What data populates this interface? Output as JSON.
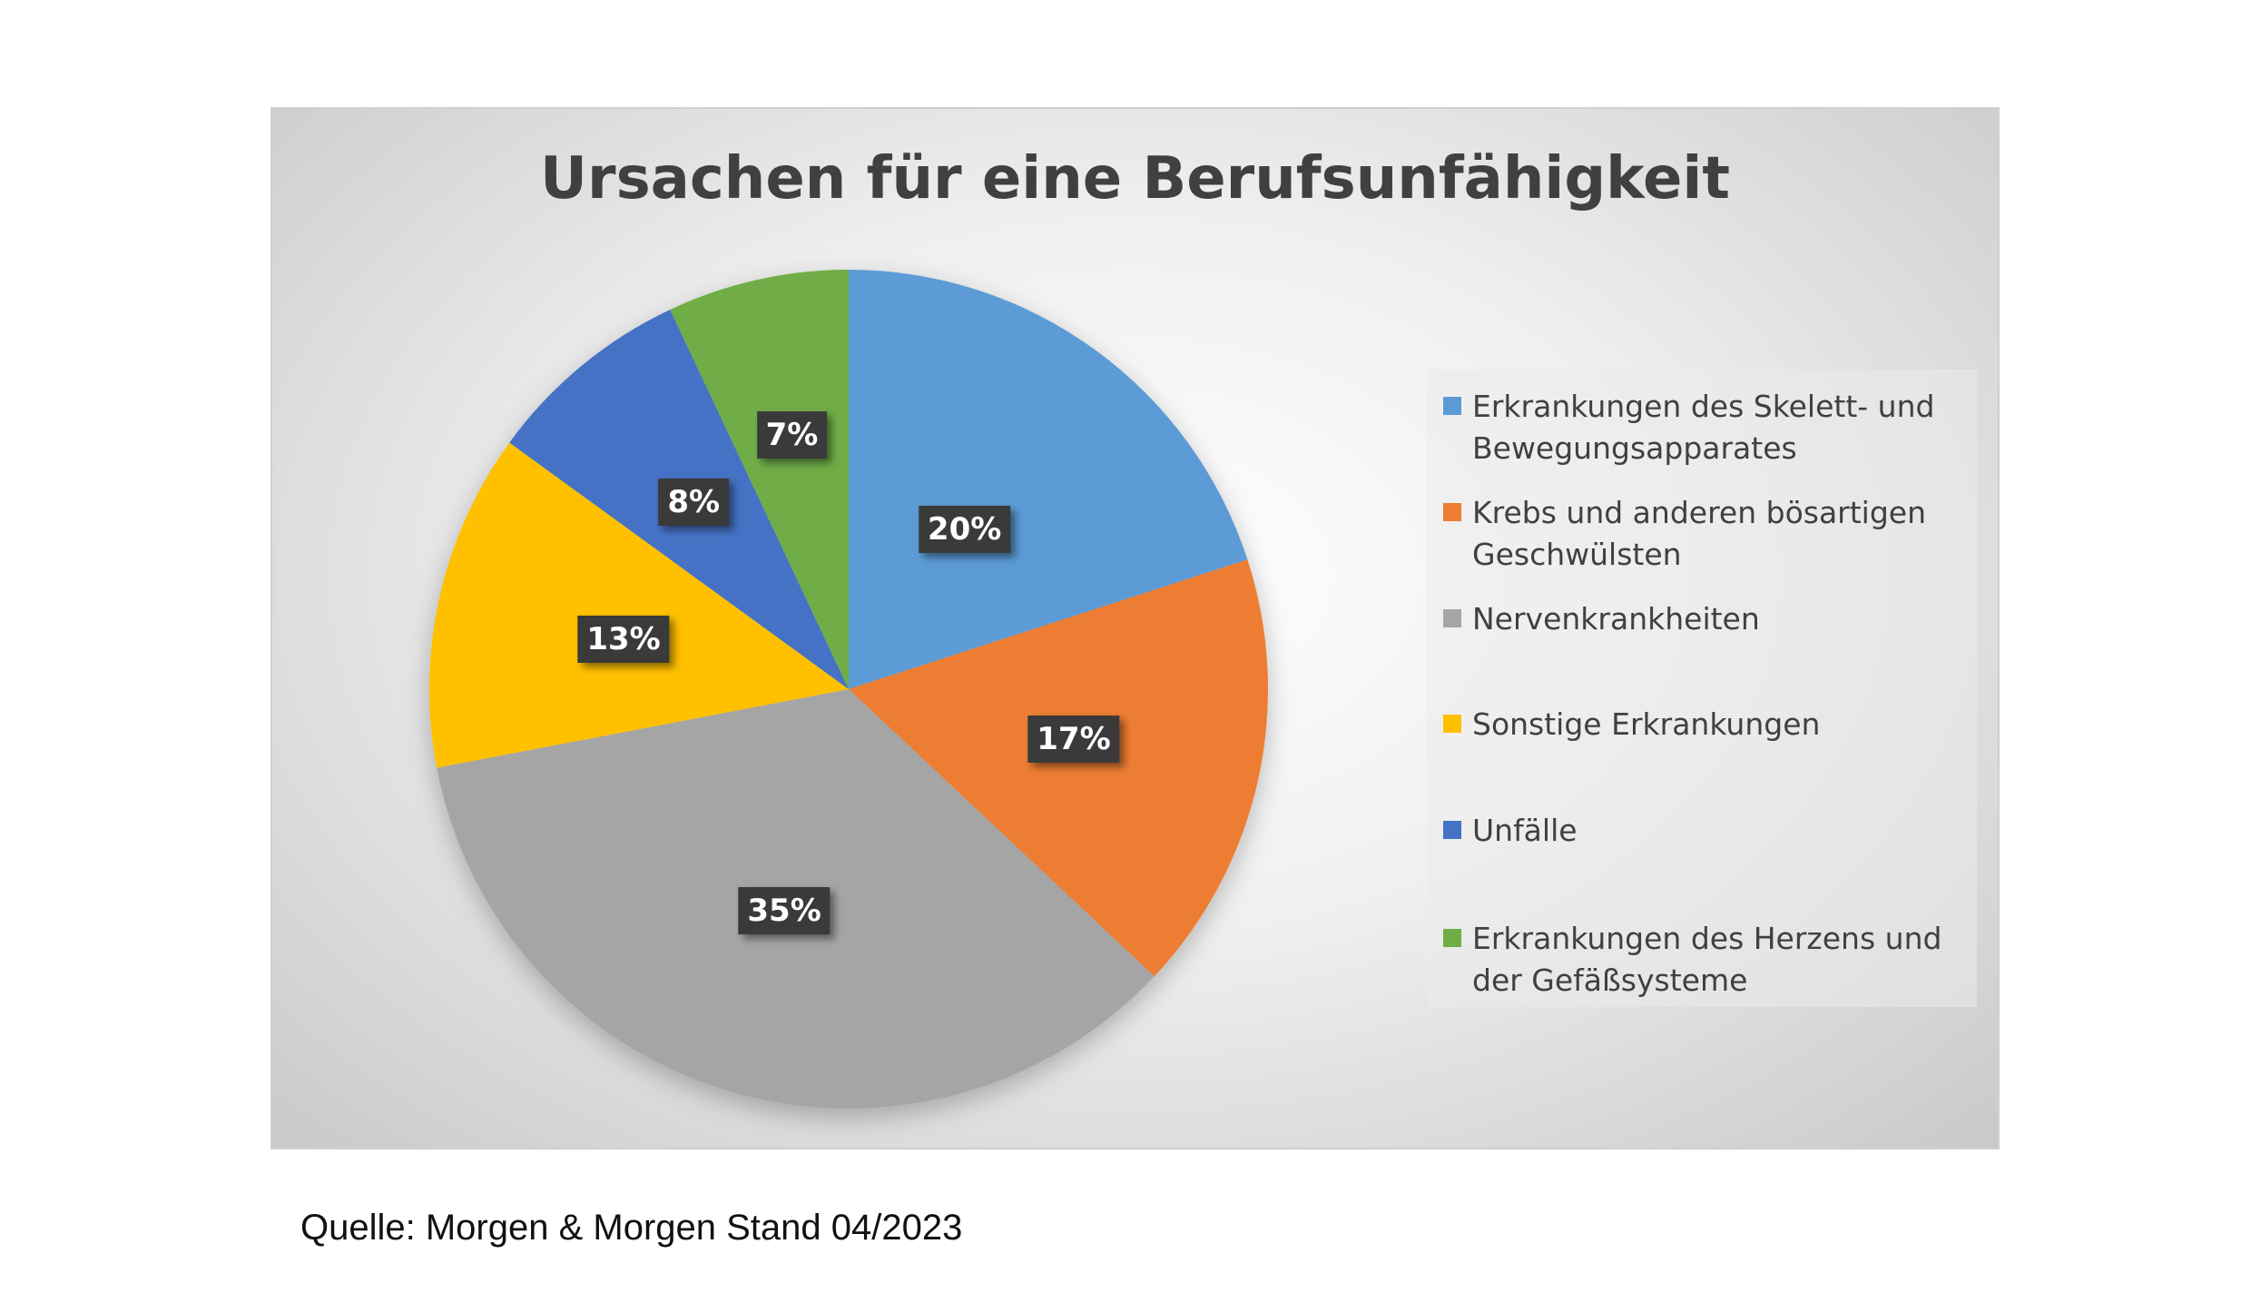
{
  "chart_data": {
    "type": "pie",
    "title": "Ursachen für eine Berufsunfähigkeit",
    "start": "top, clockwise",
    "legend_position": "right",
    "categories": [
      "Erkrankungen des Skelett- und Bewegungsapparates",
      "Krebs und anderen bösartigen Geschwülsten",
      "Nervenkrankheiten",
      "Sonstige Erkrankungen",
      "Unfälle",
      "Erkrankungen des Herzens und der Gefäßsysteme"
    ],
    "values": [
      20,
      17,
      35,
      13,
      8,
      7
    ],
    "data_labels": [
      "20%",
      "17%",
      "35%",
      "13%",
      "8%",
      "7%"
    ],
    "colors": [
      "#5B9BD5",
      "#ED7D31",
      "#A5A5A5",
      "#FFC000",
      "#4472C4",
      "#70AD47"
    ]
  },
  "source": "Quelle: Morgen & Morgen Stand 04/2023"
}
